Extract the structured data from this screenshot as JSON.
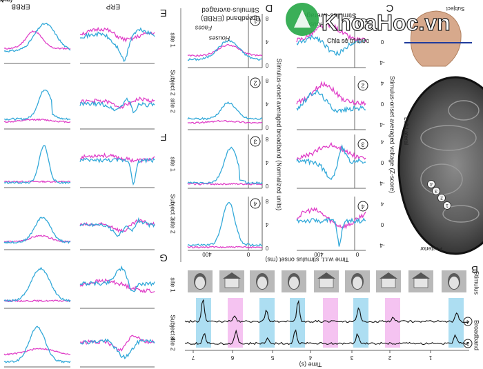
{
  "figure": {
    "panels": {
      "B": "B",
      "C": "C",
      "D": "D",
      "E": "E",
      "F": "F",
      "G": "G"
    },
    "col_titles": {
      "erp": "ERP",
      "erbb": "ERBB"
    },
    "subjects": [
      "Subject 2",
      "Subject 3",
      "Subject 4"
    ],
    "sites": [
      "site 1",
      "site 2"
    ],
    "time_label": "Time (ms)",
    "tick_0": "0",
    "tick_400": "400",
    "panel_d": {
      "title_lines": [
        "Stimulus-averaged",
        "Broadband (ERBB)"
      ],
      "legend_faces": "Faces",
      "legend_houses": "Houses",
      "ylabel": "Stimulus-onset averaged broadband (Normalized units)",
      "y_ticks": [
        "8",
        "4",
        "0"
      ],
      "site_numbers": [
        "1",
        "2",
        "3",
        "4"
      ]
    },
    "panel_c": {
      "title_line": "Stimulus-averaged",
      "legend_houses": "Houses",
      "ylabel": "Stimulus-onset averaged voltage (Z-score)",
      "y_ticks": [
        "4",
        "0",
        "-4"
      ],
      "site_numbers": [
        "1",
        "2",
        "3",
        "4"
      ]
    },
    "onset_label": "Time w.r.t. stimulus onset (ms)",
    "brain": {
      "subject_label": "Subject",
      "left_lateral": "Left Lateral",
      "posterior": "Posterior",
      "electrodes": [
        "4",
        "3",
        "2",
        "1"
      ]
    },
    "panel_b": {
      "stimulus_label": "Stimulus",
      "broadband_label": "Broadband",
      "channels": [
        "4",
        "1"
      ],
      "time_label": "Time (s)",
      "time_ticks": [
        "1",
        "2",
        "3",
        "4",
        "5",
        "6",
        "7"
      ]
    },
    "colors": {
      "faces": "#33a9d9",
      "houses": "#e040c8",
      "face_band": "#9fd8f0",
      "house_band": "#f3b8ee"
    }
  },
  "watermark": {
    "text": "KhoaHoc.vn",
    "dotvn": ".vn",
    "tagline": "Chia sẻ tri thức"
  }
}
